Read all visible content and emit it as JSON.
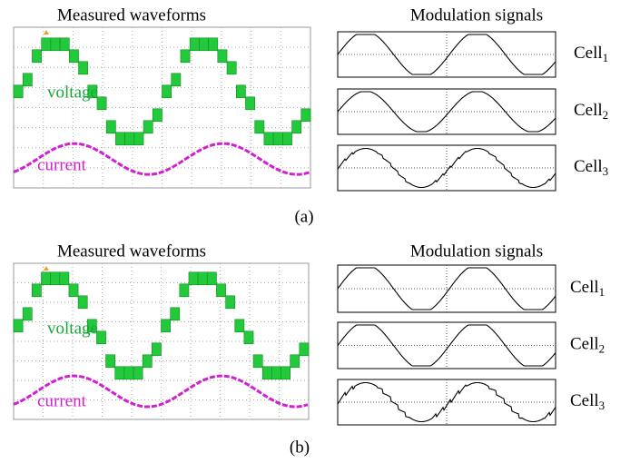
{
  "panels": [
    {
      "scope_title": "Measured waveforms",
      "signals_title": "Modulation signals",
      "voltage_label": "voltage",
      "current_label": "current",
      "cells": [
        {
          "name": "Cell",
          "index": "1"
        },
        {
          "name": "Cell",
          "index": "2"
        },
        {
          "name": "Cell",
          "index": "3"
        }
      ],
      "caption": "(a)"
    },
    {
      "scope_title": "Measured waveforms",
      "signals_title": "Modulation signals",
      "voltage_label": "voltage",
      "current_label": "current",
      "cells": [
        {
          "name": "Cell",
          "index": "1"
        },
        {
          "name": "Cell",
          "index": "2"
        },
        {
          "name": "Cell",
          "index": "3"
        }
      ],
      "caption": "(b)"
    }
  ]
}
